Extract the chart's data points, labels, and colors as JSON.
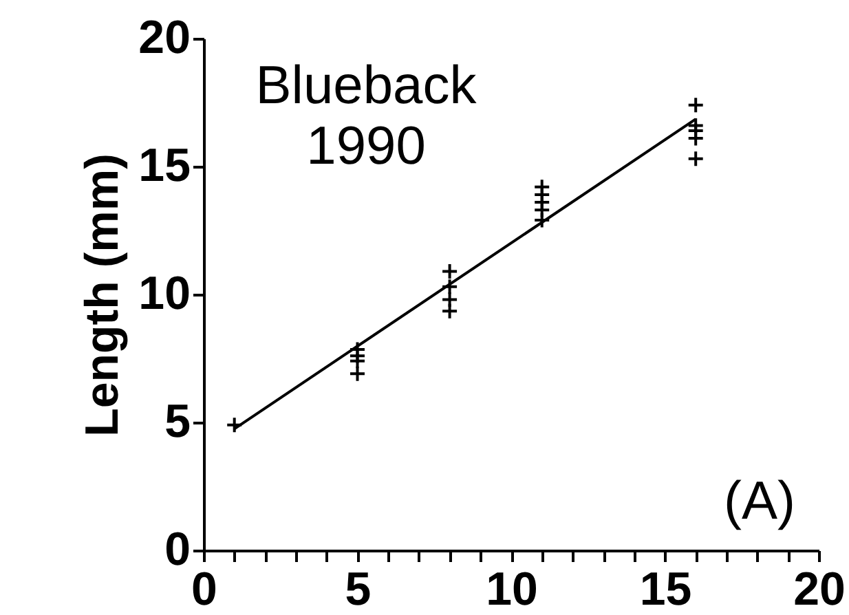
{
  "chart_data": {
    "type": "scatter",
    "ylabel": "Length (mm)",
    "annotations": [
      "Blueback\n1990",
      "(A)"
    ],
    "xlim": [
      0,
      20
    ],
    "ylim": [
      0,
      20
    ],
    "xticks": [
      0,
      {
        "value": 1,
        "label": null
      },
      {
        "value": 2,
        "label": null
      },
      {
        "value": 3,
        "label": null
      },
      {
        "value": 4,
        "label": null
      },
      5,
      {
        "value": 6,
        "label": null
      },
      {
        "value": 7,
        "label": null
      },
      {
        "value": 8,
        "label": null
      },
      {
        "value": 9,
        "label": null
      },
      10,
      {
        "value": 11,
        "label": null
      },
      {
        "value": 12,
        "label": null
      },
      {
        "value": 13,
        "label": null
      },
      {
        "value": 14,
        "label": null
      },
      15,
      {
        "value": 16,
        "label": null
      },
      {
        "value": 17,
        "label": null
      },
      {
        "value": 18,
        "label": null
      },
      {
        "value": 19,
        "label": null
      },
      20
    ],
    "yticks": [
      0,
      5,
      10,
      15,
      20
    ],
    "series": [
      {
        "marker": "cross",
        "color": "#000000",
        "x": [
          1,
          5,
          5,
          5,
          5,
          8,
          8,
          8,
          8,
          11,
          11,
          11,
          11,
          11,
          16,
          16,
          16,
          16,
          16
        ],
        "values": [
          4.9,
          7.85,
          7.6,
          7.4,
          6.9,
          10.9,
          10.3,
          9.8,
          9.35,
          14.2,
          13.9,
          13.6,
          13.3,
          12.9,
          17.4,
          16.6,
          16.4,
          16.1,
          15.3
        ]
      },
      {
        "type": "line",
        "line_style": "solid",
        "color": "#000000",
        "x": [
          1,
          16
        ],
        "values": [
          4.75,
          16.85
        ]
      }
    ]
  }
}
